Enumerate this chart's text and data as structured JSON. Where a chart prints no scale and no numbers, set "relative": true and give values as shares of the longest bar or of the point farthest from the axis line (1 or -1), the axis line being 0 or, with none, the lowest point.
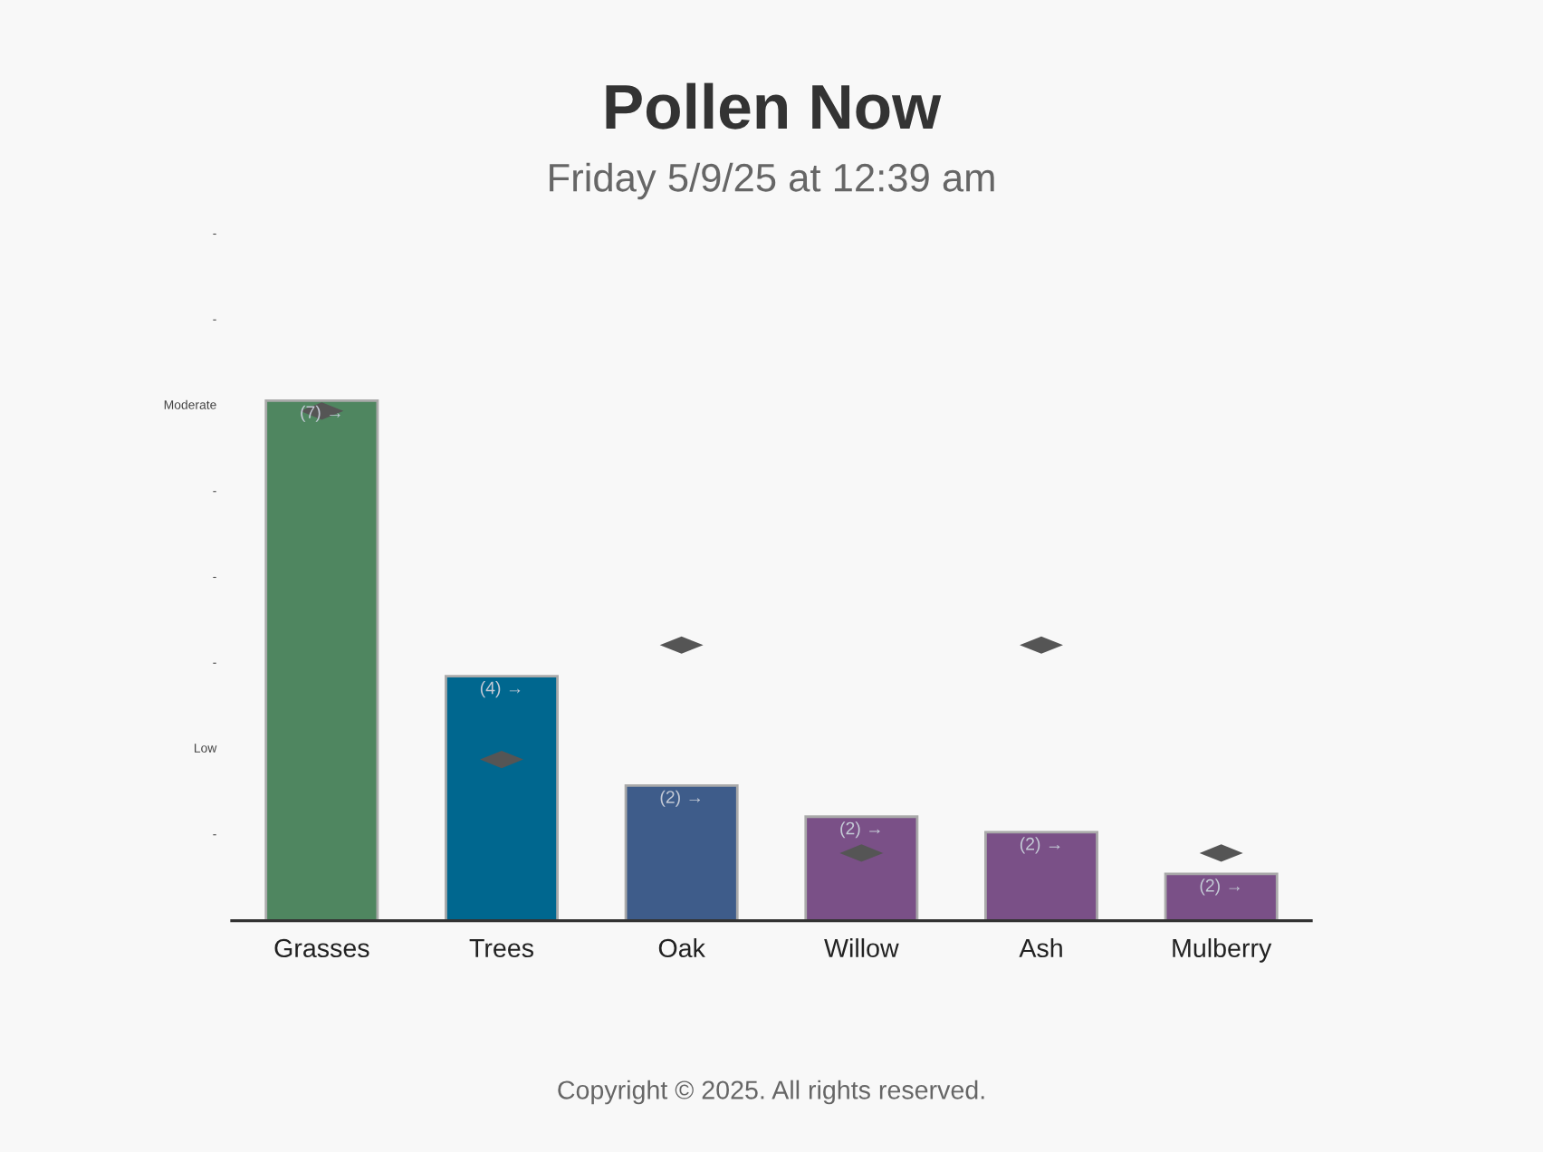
{
  "chart_data": {
    "type": "bar",
    "title": "Pollen Now",
    "subtitle": "Friday 5/9/25 at 12:39 am",
    "relative": true,
    "categories": [
      "Grasses",
      "Trees",
      "Oak",
      "Willow",
      "Ash",
      "Mulberry"
    ],
    "series": [
      {
        "colors": [
          "#4f8660",
          "#00678f",
          "#3e5c8a",
          "#7a5087",
          "#7a5087",
          "#7a5087"
        ],
        "values": [
          1,
          0.47,
          0.26,
          0.2,
          0.17,
          0.09
        ]
      },
      {
        "type": "scatter",
        "color": "#555555",
        "marker": "diamond",
        "x": [
          "Grasses",
          "Trees",
          "Oak",
          "Willow",
          "Ash",
          "Mulberry"
        ],
        "values": [
          0.98,
          0.31,
          0.53,
          0.13,
          0.53,
          0.13
        ]
      }
    ],
    "annotations": [
      {
        "text": "(7) →",
        "x": "Grasses",
        "y": 1
      },
      {
        "text": "(4) →",
        "x": "Trees",
        "y": 0.47
      },
      {
        "text": "(2) →",
        "x": "Oak",
        "y": 0.26
      },
      {
        "text": "(2) →",
        "x": "Willow",
        "y": 0.2
      },
      {
        "text": "(2) →",
        "x": "Ash",
        "y": 0.17
      },
      {
        "text": "(2) →",
        "x": "Mulberry",
        "y": 0.09
      },
      "-",
      "Low",
      "-",
      "-",
      "-",
      "Moderate",
      "-",
      "-",
      "Copyright © 2025. All rights reserved."
    ]
  }
}
